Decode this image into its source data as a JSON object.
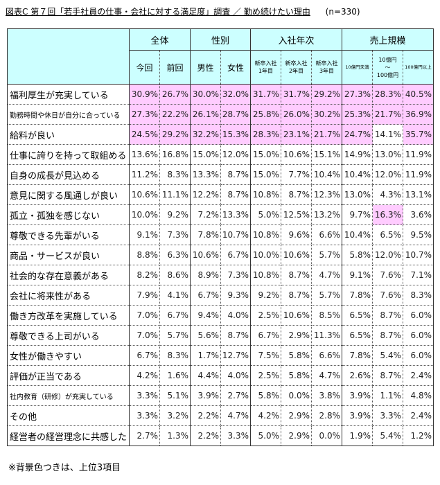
{
  "title": {
    "main": "図表C  第７回「若手社員の仕事・会社に対する満足度」調査  ／  勤め続けたい理由",
    "sample": "(n=330)"
  },
  "header": {
    "groups": [
      {
        "label": "全体",
        "span": 2
      },
      {
        "label": "性別",
        "span": 2
      },
      {
        "label": "入社年次",
        "span": 3
      },
      {
        "label": "売上規模",
        "span": 3
      }
    ],
    "columns": [
      {
        "label": "今回"
      },
      {
        "label": "前回"
      },
      {
        "label": "男性"
      },
      {
        "label": "女性"
      },
      {
        "label": "新卒入社\n1年目"
      },
      {
        "label": "新卒入社\n2年目"
      },
      {
        "label": "新卒入社\n3年目"
      },
      {
        "label": "10億円未満"
      },
      {
        "label": "10億円\n～\n100億円"
      },
      {
        "label": "100億円以上"
      }
    ]
  },
  "rows": [
    {
      "label": "福利厚生が充実している",
      "values": [
        "30.9%",
        "26.7%",
        "30.0%",
        "32.0%",
        "31.7%",
        "31.7%",
        "29.2%",
        "27.3%",
        "28.3%",
        "40.5%"
      ],
      "highlight": [
        1,
        1,
        1,
        1,
        1,
        1,
        1,
        1,
        1,
        1
      ]
    },
    {
      "label": "勤務時間や休日が自分に合っている",
      "small": true,
      "values": [
        "27.3%",
        "22.2%",
        "26.1%",
        "28.7%",
        "25.8%",
        "26.0%",
        "30.2%",
        "25.3%",
        "21.7%",
        "36.9%"
      ],
      "highlight": [
        1,
        1,
        1,
        1,
        1,
        1,
        1,
        1,
        1,
        1
      ]
    },
    {
      "label": "給料が良い",
      "values": [
        "24.5%",
        "29.2%",
        "32.2%",
        "15.3%",
        "28.3%",
        "23.1%",
        "21.7%",
        "24.7%",
        "14.1%",
        "35.7%"
      ],
      "highlight": [
        1,
        1,
        1,
        1,
        1,
        1,
        1,
        1,
        0,
        1
      ]
    },
    {
      "label": "仕事に誇りを持って取組める",
      "values": [
        "13.6%",
        "16.8%",
        "15.0%",
        "12.0%",
        "15.0%",
        "10.6%",
        "15.1%",
        "14.9%",
        "13.0%",
        "11.9%"
      ],
      "highlight": [
        0,
        0,
        0,
        0,
        0,
        0,
        0,
        0,
        0,
        0
      ]
    },
    {
      "label": "自身の成長が見込める",
      "values": [
        "11.2%",
        "8.3%",
        "13.3%",
        "8.7%",
        "15.0%",
        "7.7%",
        "10.4%",
        "10.4%",
        "12.0%",
        "11.9%"
      ],
      "highlight": [
        0,
        0,
        0,
        0,
        0,
        0,
        0,
        0,
        0,
        0
      ]
    },
    {
      "label": "意見に関する風通しが良い",
      "values": [
        "10.6%",
        "11.1%",
        "12.2%",
        "8.7%",
        "10.8%",
        "8.7%",
        "12.3%",
        "13.0%",
        "4.3%",
        "13.1%"
      ],
      "highlight": [
        0,
        0,
        0,
        0,
        0,
        0,
        0,
        0,
        0,
        0
      ]
    },
    {
      "label": "孤立・孤独を感じない",
      "values": [
        "10.0%",
        "9.2%",
        "7.2%",
        "13.3%",
        "5.0%",
        "12.5%",
        "13.2%",
        "9.7%",
        "16.3%",
        "3.6%"
      ],
      "highlight": [
        0,
        0,
        0,
        0,
        0,
        0,
        0,
        0,
        1,
        0
      ]
    },
    {
      "label": "尊敬できる先輩がいる",
      "values": [
        "9.1%",
        "7.3%",
        "7.8%",
        "10.7%",
        "10.8%",
        "9.6%",
        "6.6%",
        "10.4%",
        "6.5%",
        "9.5%"
      ],
      "highlight": [
        0,
        0,
        0,
        0,
        0,
        0,
        0,
        0,
        0,
        0
      ]
    },
    {
      "label": "商品・サービスが良い",
      "values": [
        "8.8%",
        "6.3%",
        "10.6%",
        "6.7%",
        "10.0%",
        "10.6%",
        "5.7%",
        "5.8%",
        "12.0%",
        "10.7%"
      ],
      "highlight": [
        0,
        0,
        0,
        0,
        0,
        0,
        0,
        0,
        0,
        0
      ]
    },
    {
      "label": "社会的な存在意義がある",
      "values": [
        "8.2%",
        "8.6%",
        "8.9%",
        "7.3%",
        "10.8%",
        "8.7%",
        "4.7%",
        "9.1%",
        "7.6%",
        "7.1%"
      ],
      "highlight": [
        0,
        0,
        0,
        0,
        0,
        0,
        0,
        0,
        0,
        0
      ]
    },
    {
      "label": "会社に将来性がある",
      "values": [
        "7.9%",
        "4.1%",
        "6.7%",
        "9.3%",
        "9.2%",
        "8.7%",
        "5.7%",
        "7.8%",
        "7.6%",
        "8.3%"
      ],
      "highlight": [
        0,
        0,
        0,
        0,
        0,
        0,
        0,
        0,
        0,
        0
      ]
    },
    {
      "label": "働き方改革を実施している",
      "values": [
        "7.0%",
        "6.7%",
        "9.4%",
        "4.0%",
        "2.5%",
        "10.6%",
        "8.5%",
        "6.5%",
        "8.7%",
        "6.0%"
      ],
      "highlight": [
        0,
        0,
        0,
        0,
        0,
        0,
        0,
        0,
        0,
        0
      ]
    },
    {
      "label": "尊敬できる上司がいる",
      "values": [
        "7.0%",
        "5.7%",
        "5.6%",
        "8.7%",
        "6.7%",
        "2.9%",
        "11.3%",
        "6.5%",
        "8.7%",
        "6.0%"
      ],
      "highlight": [
        0,
        0,
        0,
        0,
        0,
        0,
        0,
        0,
        0,
        0
      ]
    },
    {
      "label": "女性が働きやすい",
      "values": [
        "6.7%",
        "8.3%",
        "1.7%",
        "12.7%",
        "7.5%",
        "5.8%",
        "6.6%",
        "7.8%",
        "5.4%",
        "6.0%"
      ],
      "highlight": [
        0,
        0,
        0,
        0,
        0,
        0,
        0,
        0,
        0,
        0
      ]
    },
    {
      "label": "評価が正当である",
      "values": [
        "4.2%",
        "1.6%",
        "4.4%",
        "4.0%",
        "2.5%",
        "5.8%",
        "4.7%",
        "2.6%",
        "8.7%",
        "2.4%"
      ],
      "highlight": [
        0,
        0,
        0,
        0,
        0,
        0,
        0,
        0,
        0,
        0
      ]
    },
    {
      "label": "社内教育（研修）が充実している",
      "small": true,
      "values": [
        "3.3%",
        "5.1%",
        "3.9%",
        "2.7%",
        "5.8%",
        "0.0%",
        "3.8%",
        "3.9%",
        "1.1%",
        "4.8%"
      ],
      "highlight": [
        0,
        0,
        0,
        0,
        0,
        0,
        0,
        0,
        0,
        0
      ]
    },
    {
      "label": "その他",
      "values": [
        "3.3%",
        "3.2%",
        "2.2%",
        "4.7%",
        "4.2%",
        "2.9%",
        "2.8%",
        "3.9%",
        "3.3%",
        "2.4%"
      ],
      "highlight": [
        0,
        0,
        0,
        0,
        0,
        0,
        0,
        0,
        0,
        0
      ]
    },
    {
      "label": "経営者の経営理念に共感した",
      "values": [
        "2.7%",
        "1.3%",
        "2.2%",
        "3.3%",
        "5.0%",
        "2.9%",
        "0.0%",
        "1.9%",
        "5.4%",
        "1.2%"
      ],
      "highlight": [
        0,
        0,
        0,
        0,
        0,
        0,
        0,
        0,
        0,
        0
      ]
    }
  ],
  "footnote": "※背景色つきは、上位3項目",
  "colors": {
    "header_bg": "#ccffff",
    "highlight_bg": "#ffccff",
    "border": "#333333"
  }
}
